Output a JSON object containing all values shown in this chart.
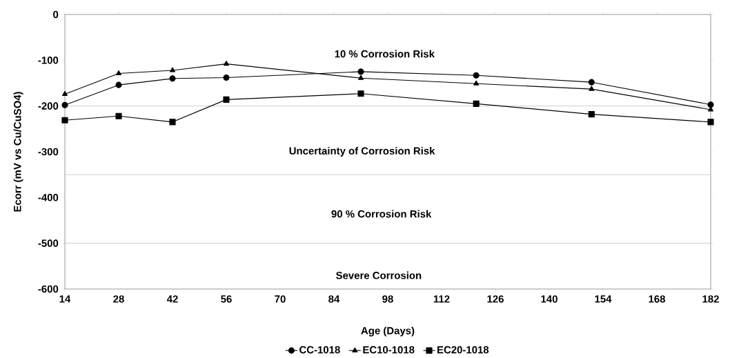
{
  "chart_data": {
    "type": "line",
    "xlabel": "Age (Days)",
    "ylabel": "Ecorr (mV vs Cu/CuSO4)",
    "x": [
      14,
      28,
      42,
      56,
      91,
      121,
      151,
      182
    ],
    "series": [
      {
        "name": "CC-1018",
        "color": "#000000",
        "marker": "circle",
        "values": [
          -198,
          -154,
          -140,
          -138,
          -125,
          -133,
          -148,
          -197
        ]
      },
      {
        "name": "EC10-1018",
        "color": "#000000",
        "marker": "triangle",
        "values": [
          -174,
          -129,
          -122,
          -108,
          -139,
          -151,
          -163,
          -208
        ]
      },
      {
        "name": "EC20-1018",
        "color": "#000000",
        "marker": "square",
        "values": [
          -231,
          -222,
          -235,
          -186,
          -173,
          -195,
          -218,
          -235
        ]
      }
    ],
    "xlim": [
      14,
      182
    ],
    "xticks": [
      14,
      28,
      42,
      56,
      70,
      84,
      98,
      112,
      126,
      140,
      154,
      168,
      182
    ],
    "ylim": [
      -600,
      0
    ],
    "yticks": [
      -600,
      -500,
      -400,
      -300,
      -200,
      -100,
      0
    ],
    "ref_lines": [
      {
        "axis": "y",
        "value": -200,
        "color": "#bfbfbf"
      },
      {
        "axis": "y",
        "value": -350,
        "color": "#bfbfbf"
      },
      {
        "axis": "y",
        "value": -500,
        "color": "#bfbfbf"
      }
    ],
    "annotations": [
      "10 % Corrosion Risk",
      "Uncertainty of Corrosion Risk",
      "90 % Corrosion Risk",
      "Severe Corrosion"
    ],
    "grid": false,
    "legend": "bottom",
    "line_style": "solid"
  }
}
